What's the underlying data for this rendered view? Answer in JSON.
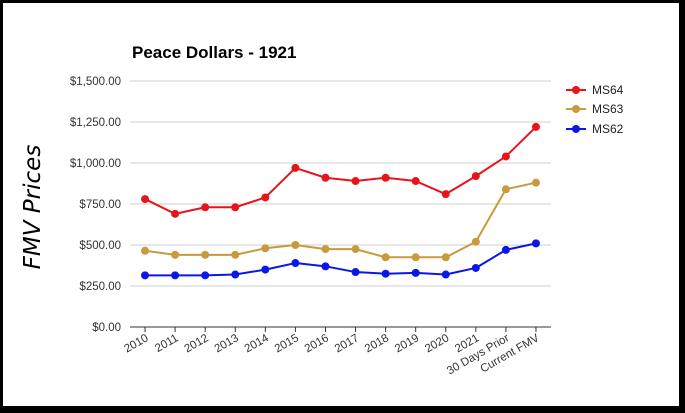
{
  "chart_data": {
    "type": "line",
    "title": "Peace Dollars - 1921",
    "xlabel": "",
    "ylabel": "FMV Prices",
    "categories": [
      "2010",
      "2011",
      "2012",
      "2013",
      "2014",
      "2015",
      "2016",
      "2017",
      "2018",
      "2019",
      "2020",
      "2021",
      "30 Days Prior",
      "Current FMV"
    ],
    "y_ticks": [
      "$0.00",
      "$250.00",
      "$500.00",
      "$750.00",
      "$1,000.00",
      "$1,250.00",
      "$1,500.00"
    ],
    "ylim": [
      0,
      1500
    ],
    "grid": true,
    "legend_position": "right",
    "series": [
      {
        "name": "MS64",
        "color": "#e8141b",
        "values": [
          780,
          690,
          730,
          730,
          790,
          970,
          910,
          890,
          910,
          890,
          810,
          920,
          1040,
          1220
        ]
      },
      {
        "name": "MS63",
        "color": "#c99a3d",
        "values": [
          465,
          440,
          440,
          440,
          480,
          500,
          475,
          475,
          425,
          425,
          425,
          520,
          840,
          880
        ]
      },
      {
        "name": "MS62",
        "color": "#0a17e6",
        "values": [
          315,
          315,
          315,
          320,
          350,
          390,
          370,
          335,
          325,
          330,
          320,
          360,
          470,
          510
        ]
      }
    ]
  }
}
